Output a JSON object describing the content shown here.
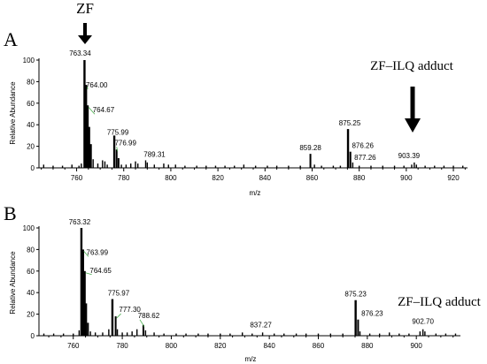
{
  "chart_data": [
    {
      "type": "bar",
      "panel_label": "A",
      "xlabel": "m/z",
      "ylabel": "Relative Abundance",
      "xlim": [
        744,
        926
      ],
      "ylim": [
        0,
        100
      ],
      "xticks": [
        "760",
        "780",
        "800",
        "820",
        "840",
        "860",
        "880",
        "900",
        "920"
      ],
      "yticks": [
        "0",
        "20",
        "40",
        "60",
        "80",
        "100"
      ],
      "top_annotation": "ZF",
      "adduct_annotation": "ZF–ILQ adduct",
      "peaks": [
        {
          "x": 746,
          "y": 3
        },
        {
          "x": 750,
          "y": 2
        },
        {
          "x": 754,
          "y": 2
        },
        {
          "x": 758,
          "y": 3
        },
        {
          "x": 761,
          "y": 2
        },
        {
          "x": 762,
          "y": 4
        },
        {
          "x": 763.34,
          "y": 100,
          "label": "763.34"
        },
        {
          "x": 764.0,
          "y": 77,
          "label": "764.00"
        },
        {
          "x": 764.67,
          "y": 58,
          "label": "764.67"
        },
        {
          "x": 765.3,
          "y": 38
        },
        {
          "x": 766,
          "y": 22
        },
        {
          "x": 767,
          "y": 8
        },
        {
          "x": 769,
          "y": 4
        },
        {
          "x": 771,
          "y": 7
        },
        {
          "x": 772,
          "y": 6
        },
        {
          "x": 773,
          "y": 3
        },
        {
          "x": 775.99,
          "y": 30,
          "label": "775.99"
        },
        {
          "x": 776.99,
          "y": 17,
          "label": "776.99"
        },
        {
          "x": 777.8,
          "y": 9
        },
        {
          "x": 779,
          "y": 3
        },
        {
          "x": 781,
          "y": 3
        },
        {
          "x": 783,
          "y": 4
        },
        {
          "x": 785,
          "y": 6
        },
        {
          "x": 786,
          "y": 4
        },
        {
          "x": 789.31,
          "y": 7,
          "label": "789.31"
        },
        {
          "x": 790,
          "y": 5
        },
        {
          "x": 793,
          "y": 3
        },
        {
          "x": 797,
          "y": 4
        },
        {
          "x": 799,
          "y": 3
        },
        {
          "x": 802,
          "y": 3
        },
        {
          "x": 806,
          "y": 2
        },
        {
          "x": 811,
          "y": 2
        },
        {
          "x": 815,
          "y": 2
        },
        {
          "x": 819,
          "y": 2
        },
        {
          "x": 823,
          "y": 2
        },
        {
          "x": 827,
          "y": 2
        },
        {
          "x": 831,
          "y": 3
        },
        {
          "x": 836,
          "y": 2
        },
        {
          "x": 841,
          "y": 2
        },
        {
          "x": 845,
          "y": 2
        },
        {
          "x": 850,
          "y": 2
        },
        {
          "x": 855,
          "y": 2
        },
        {
          "x": 859.28,
          "y": 13,
          "label": "859.28"
        },
        {
          "x": 861,
          "y": 3
        },
        {
          "x": 864,
          "y": 2
        },
        {
          "x": 869,
          "y": 2
        },
        {
          "x": 872,
          "y": 2
        },
        {
          "x": 875.25,
          "y": 36,
          "label": "875.25"
        },
        {
          "x": 876.26,
          "y": 15,
          "label": "876.26"
        },
        {
          "x": 877.26,
          "y": 5,
          "label": "877.26"
        },
        {
          "x": 880,
          "y": 2
        },
        {
          "x": 885,
          "y": 2
        },
        {
          "x": 890,
          "y": 2
        },
        {
          "x": 895,
          "y": 2
        },
        {
          "x": 899,
          "y": 2
        },
        {
          "x": 902.3,
          "y": 3
        },
        {
          "x": 903.39,
          "y": 5,
          "label": "903.39"
        },
        {
          "x": 904.3,
          "y": 3
        },
        {
          "x": 908,
          "y": 2
        },
        {
          "x": 912,
          "y": 2
        },
        {
          "x": 916,
          "y": 2
        },
        {
          "x": 920,
          "y": 2
        },
        {
          "x": 924,
          "y": 2
        }
      ]
    },
    {
      "type": "bar",
      "panel_label": "B",
      "xlabel": "m/z",
      "ylabel": "Relative Abundance",
      "xlim": [
        746,
        918
      ],
      "ylim": [
        0,
        100
      ],
      "xticks": [
        "760",
        "780",
        "800",
        "820",
        "840",
        "860",
        "880",
        "900"
      ],
      "yticks": [
        "0",
        "20",
        "40",
        "60",
        "80",
        "100"
      ],
      "adduct_annotation": "ZF–ILQ adduct",
      "peaks": [
        {
          "x": 748,
          "y": 2
        },
        {
          "x": 752,
          "y": 2
        },
        {
          "x": 756,
          "y": 2
        },
        {
          "x": 760,
          "y": 2
        },
        {
          "x": 762.4,
          "y": 5
        },
        {
          "x": 763.32,
          "y": 100,
          "label": "763.32"
        },
        {
          "x": 763.99,
          "y": 80,
          "label": "763.99"
        },
        {
          "x": 764.65,
          "y": 60,
          "label": "764.65"
        },
        {
          "x": 765.2,
          "y": 30
        },
        {
          "x": 766,
          "y": 12
        },
        {
          "x": 767,
          "y": 4
        },
        {
          "x": 769,
          "y": 3
        },
        {
          "x": 772,
          "y": 3
        },
        {
          "x": 774.5,
          "y": 6
        },
        {
          "x": 775.97,
          "y": 34,
          "label": "775.97"
        },
        {
          "x": 777.3,
          "y": 18,
          "label": "777.30"
        },
        {
          "x": 778,
          "y": 6
        },
        {
          "x": 780,
          "y": 3
        },
        {
          "x": 782,
          "y": 3
        },
        {
          "x": 784,
          "y": 4
        },
        {
          "x": 786,
          "y": 6
        },
        {
          "x": 788.62,
          "y": 10,
          "label": "788.62"
        },
        {
          "x": 789.5,
          "y": 5
        },
        {
          "x": 793,
          "y": 3
        },
        {
          "x": 797,
          "y": 2
        },
        {
          "x": 802,
          "y": 2
        },
        {
          "x": 806,
          "y": 2
        },
        {
          "x": 811,
          "y": 2
        },
        {
          "x": 815,
          "y": 2
        },
        {
          "x": 820,
          "y": 2
        },
        {
          "x": 824,
          "y": 2
        },
        {
          "x": 829,
          "y": 3
        },
        {
          "x": 833,
          "y": 2
        },
        {
          "x": 837.27,
          "y": 3,
          "label": "837.27"
        },
        {
          "x": 842,
          "y": 2
        },
        {
          "x": 846,
          "y": 2
        },
        {
          "x": 851,
          "y": 2
        },
        {
          "x": 855,
          "y": 2
        },
        {
          "x": 860,
          "y": 2
        },
        {
          "x": 865,
          "y": 2
        },
        {
          "x": 870,
          "y": 2
        },
        {
          "x": 875.23,
          "y": 33,
          "label": "875.23"
        },
        {
          "x": 876.23,
          "y": 15,
          "label": "876.23"
        },
        {
          "x": 877,
          "y": 4
        },
        {
          "x": 881,
          "y": 2
        },
        {
          "x": 885,
          "y": 2
        },
        {
          "x": 889,
          "y": 3
        },
        {
          "x": 893,
          "y": 2
        },
        {
          "x": 897,
          "y": 2
        },
        {
          "x": 901.5,
          "y": 4
        },
        {
          "x": 902.7,
          "y": 6,
          "label": "902.70"
        },
        {
          "x": 903.5,
          "y": 4
        },
        {
          "x": 908,
          "y": 2
        },
        {
          "x": 912,
          "y": 2
        },
        {
          "x": 916,
          "y": 2
        }
      ]
    }
  ]
}
